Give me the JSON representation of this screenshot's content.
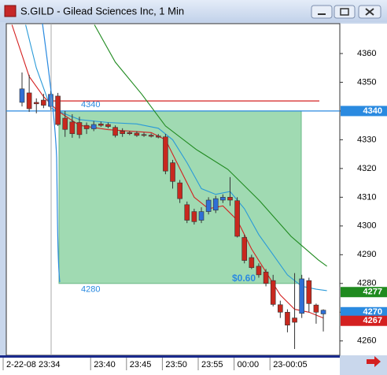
{
  "chart_data": {
    "type": "candlestick",
    "title": "S.GILD - Gilead Sciences Inc, 1 Min",
    "categories": [
      null,
      null,
      null,
      null,
      "2-22-08 23:34",
      null,
      null,
      null,
      null,
      null,
      "23:40",
      null,
      null,
      null,
      null,
      "23:45",
      null,
      null,
      null,
      null,
      "23:50",
      null,
      null,
      null,
      null,
      "23:55",
      null,
      null,
      null,
      null,
      "00:00",
      null,
      null,
      null,
      null,
      "23-00:05",
      null,
      null,
      null,
      null,
      null,
      null,
      null
    ],
    "open": [
      4343,
      4346.3,
      4343,
      4343.8,
      4341.6,
      4345.2,
      4337.5,
      4336.2,
      4336,
      4335,
      4333.8,
      4335.5,
      4335.3,
      4334.3,
      4333,
      4332.5,
      4332.3,
      4331.8,
      4331.6,
      4331.3,
      4331,
      4322,
      4315,
      4307.4,
      4305,
      4302,
      4305,
      4305.5,
      4309,
      4310,
      4308.8,
      4296,
      4289,
      4286,
      4284,
      4281,
      4272.6,
      4270,
      4268,
      4269.6,
      4281,
      4272.5,
      4269.4
    ],
    "high": [
      4353.4,
      4352.6,
      4344.4,
      4346,
      4347.1,
      4346.3,
      4340,
      4338.9,
      4338,
      4336,
      4336.5,
      4336.3,
      4336,
      4335,
      4334,
      4333,
      4333,
      4332.5,
      4332.2,
      4332,
      4332,
      4323,
      4316,
      4308.5,
      4306,
      4306.5,
      4310,
      4310.5,
      4311,
      4317,
      4310,
      4297,
      4290,
      4287,
      4285,
      4283,
      4274,
      4271,
      4283.6,
      4283,
      4282,
      4273,
      4271
    ],
    "low": [
      4341.6,
      4339.7,
      4339.2,
      4341,
      4340.3,
      4334.8,
      4331,
      4330.7,
      4330.5,
      4332,
      4333,
      4334.5,
      4334,
      4330.8,
      4331,
      4331.6,
      4331,
      4331,
      4330.8,
      4330.5,
      4318,
      4313,
      4308,
      4301,
      4300.5,
      4301,
      4304,
      4304.5,
      4308,
      4307,
      4296,
      4287,
      4285,
      4282,
      4279,
      4272,
      4268,
      4263,
      4257.2,
      4268,
      4270,
      4266,
      4263.3
    ],
    "close": [
      4347.7,
      4340.8,
      4342.5,
      4342,
      4345.8,
      4335.3,
      4333.6,
      4332.1,
      4331.8,
      4333.8,
      4335.3,
      4335,
      4334.6,
      4331.5,
      4332.1,
      4332.1,
      4331.5,
      4331.5,
      4331.2,
      4330.9,
      4319.1,
      4315.5,
      4309.5,
      4302,
      4301.5,
      4305,
      4309,
      4309.5,
      4310,
      4309,
      4296.4,
      4288,
      4285.5,
      4283,
      4280,
      4272.7,
      4270,
      4265.5,
      4266.5,
      4281.6,
      4273,
      4270,
      4270.7
    ],
    "up_color": "#2f6fd6",
    "down_color": "#c8281e",
    "lines": [
      {
        "color": "#d42020",
        "x": [
          -1.4,
          1,
          3,
          5,
          8,
          12,
          18,
          20,
          22,
          24,
          26,
          28,
          30,
          32,
          34,
          36,
          38,
          40,
          42
        ],
        "values": [
          4370,
          4352,
          4345,
          4340,
          4335,
          4333.5,
          4332.5,
          4330,
          4320,
          4310,
          4306,
          4307,
          4302,
          4292,
          4284,
          4276,
          4271,
          4270,
          4268
        ]
      },
      {
        "color": "#2a9ad8",
        "x": [
          0.5,
          2,
          3,
          4,
          8,
          12,
          16,
          19,
          21,
          23,
          25,
          27,
          29,
          31,
          33,
          35,
          37,
          39,
          41,
          42.5
        ],
        "values": [
          4370,
          4355,
          4348,
          4341,
          4337,
          4336,
          4335.5,
          4334,
          4330,
          4322,
          4313,
          4311,
          4312,
          4306,
          4297,
          4290,
          4283,
          4279,
          4278,
          4277.5
        ]
      },
      {
        "color": "#1f8a1f",
        "x": [
          10.1,
          13,
          16.7,
          20,
          24.3,
          28.7,
          33.1,
          37.5,
          41.3,
          42.5
        ],
        "values": [
          4370,
          4357,
          4345.8,
          4334.8,
          4326.6,
          4319.7,
          4308.8,
          4296.4,
          4288.2,
          4286
        ]
      }
    ],
    "hlines": [
      {
        "value": 4343.5,
        "color": "#d42020"
      },
      {
        "value": 4340,
        "color": "#2a8ae0"
      }
    ],
    "box": {
      "top": 4340,
      "bottom": 4280,
      "color": "#8fd4a4",
      "label": "$0.60"
    },
    "price_tags": [
      {
        "value": 4340,
        "color": "#2a8ae0"
      },
      {
        "value": 4277,
        "color": "#1f8a1f"
      },
      {
        "value": 4270,
        "color": "#2a8ae0"
      },
      {
        "value": 4267,
        "color": "#d42020"
      }
    ],
    "ylim": [
      4255,
      4370.4
    ],
    "yticks": [
      4260,
      4270,
      4280,
      4290,
      4300,
      4310,
      4320,
      4330,
      4340,
      4350,
      4360
    ]
  }
}
